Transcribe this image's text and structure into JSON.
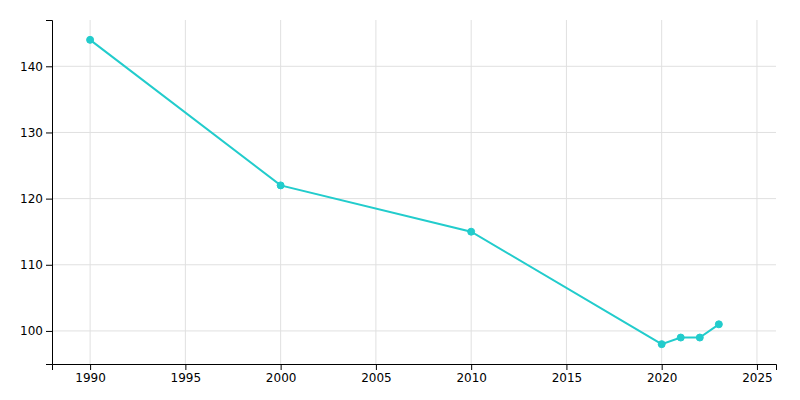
{
  "chart_data": {
    "type": "line",
    "x": [
      1990,
      2000,
      2010,
      2020,
      2021,
      2022,
      2023
    ],
    "values": [
      144,
      122,
      115,
      98,
      99,
      99,
      101
    ],
    "color": "#22CCCC",
    "marker": "circle",
    "xlim": [
      1988,
      2026
    ],
    "ylim": [
      95,
      147
    ],
    "xticks": [
      1990,
      1995,
      2000,
      2005,
      2010,
      2015,
      2020,
      2025
    ],
    "yticks": [
      100,
      110,
      120,
      130,
      140
    ],
    "grid": true
  }
}
